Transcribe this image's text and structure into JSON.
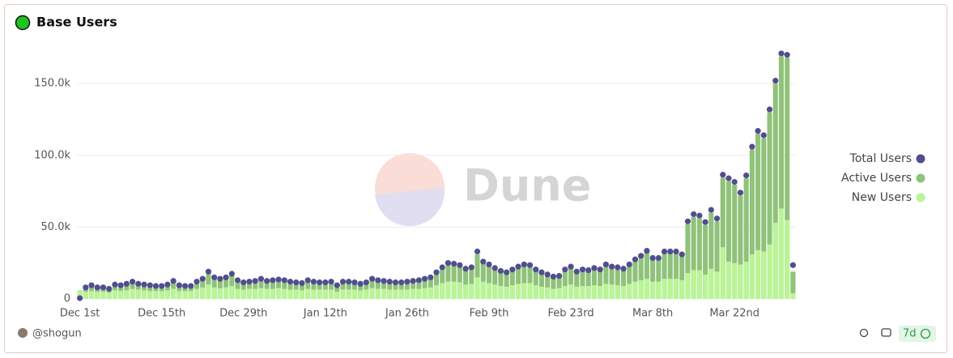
{
  "chart_data": {
    "type": "bar",
    "title": "Base Users",
    "watermark": "Dune",
    "author": "@shogun",
    "refresh": "7d",
    "categories": [
      "Dec 1st",
      null,
      null,
      null,
      null,
      null,
      null,
      null,
      null,
      null,
      null,
      null,
      null,
      null,
      "Dec 15th",
      null,
      null,
      null,
      null,
      null,
      null,
      null,
      null,
      null,
      null,
      null,
      null,
      null,
      "Dec 29th",
      null,
      null,
      null,
      null,
      null,
      null,
      null,
      null,
      null,
      null,
      null,
      null,
      null,
      "Jan 12th",
      null,
      null,
      null,
      null,
      null,
      null,
      null,
      null,
      null,
      null,
      null,
      null,
      null,
      "Jan 26th",
      null,
      null,
      null,
      null,
      null,
      null,
      null,
      null,
      null,
      null,
      null,
      null,
      null,
      "Feb 9th",
      null,
      null,
      null,
      null,
      null,
      null,
      null,
      null,
      null,
      null,
      null,
      null,
      null,
      "Feb 23rd",
      null,
      null,
      null,
      null,
      null,
      null,
      null,
      null,
      null,
      null,
      null,
      null,
      null,
      "Mar 8th",
      null,
      null,
      null,
      null,
      null,
      null,
      null,
      null,
      null,
      null,
      null,
      null,
      null,
      "Mar 22nd",
      null,
      null,
      null,
      null,
      null,
      null,
      null,
      null,
      null,
      null
    ],
    "ylim": [
      0,
      180000
    ],
    "yticks": [
      0,
      {
        "value": 50000,
        "label": "50.0k"
      },
      {
        "value": 100000,
        "label": "100.0k"
      },
      {
        "value": 150000,
        "label": "150.0k"
      }
    ],
    "grid": true,
    "legend": "right",
    "series": [
      {
        "name": "Total Users",
        "color": "#514e8f",
        "style": "dot",
        "values": [
          500,
          8000,
          9500,
          8000,
          8000,
          7000,
          10000,
          9500,
          10500,
          12000,
          10500,
          10000,
          9500,
          9000,
          9000,
          10000,
          12500,
          9500,
          9000,
          9000,
          12000,
          14000,
          19000,
          15000,
          14000,
          15000,
          17500,
          13000,
          11500,
          12000,
          12500,
          14000,
          12500,
          13000,
          13500,
          13000,
          12000,
          11500,
          11000,
          13000,
          12000,
          11500,
          11500,
          12000,
          9500,
          12000,
          12000,
          11500,
          10500,
          11500,
          14000,
          13000,
          12500,
          12000,
          11500,
          11500,
          12000,
          12500,
          13000,
          14000,
          15000,
          18500,
          22000,
          25000,
          24500,
          23500,
          21000,
          22000,
          33000,
          26000,
          24000,
          21500,
          19500,
          18500,
          20500,
          22500,
          24000,
          23500,
          20500,
          18500,
          17000,
          15500,
          16000,
          20500,
          22500,
          19000,
          20500,
          20000,
          21500,
          20500,
          24000,
          22500,
          22000,
          21000,
          24000,
          27500,
          30000,
          33500,
          28500,
          28500,
          33000,
          33000,
          33000,
          31000,
          54000,
          59000,
          58000,
          53500,
          62000,
          56000,
          86500,
          84000,
          81500,
          74000,
          86000,
          106000,
          117000,
          114000,
          132000,
          152000,
          171000,
          170000,
          23500
        ]
      },
      {
        "name": "Active Users",
        "color": "#8fc27a",
        "style": "bar",
        "values": [
          6000,
          7500,
          9000,
          7500,
          7500,
          6500,
          9500,
          9000,
          10000,
          11500,
          10000,
          9500,
          9000,
          8500,
          8500,
          9500,
          12000,
          9000,
          8500,
          8500,
          11500,
          13500,
          18000,
          14500,
          13500,
          14500,
          17000,
          12500,
          11000,
          11500,
          12000,
          13500,
          12000,
          12500,
          13000,
          12500,
          11500,
          11000,
          10500,
          12500,
          11500,
          11000,
          11000,
          11500,
          9000,
          11500,
          11500,
          11000,
          10000,
          11000,
          13500,
          12500,
          12000,
          11500,
          11000,
          11000,
          11500,
          12000,
          12500,
          13500,
          14500,
          18000,
          21000,
          24000,
          23500,
          22500,
          20000,
          21000,
          31000,
          25000,
          23000,
          20500,
          18500,
          17500,
          19500,
          21500,
          23000,
          22500,
          19500,
          17500,
          16000,
          14500,
          15000,
          19500,
          21500,
          18000,
          19500,
          19000,
          20500,
          19500,
          23000,
          21500,
          21000,
          20000,
          23000,
          26500,
          29000,
          32500,
          27500,
          27500,
          32000,
          32000,
          32000,
          30000,
          52000,
          57000,
          56000,
          51500,
          60000,
          54000,
          84500,
          82000,
          79500,
          72000,
          84000,
          104000,
          115000,
          112000,
          130000,
          150000,
          169000,
          168000,
          19000
        ]
      },
      {
        "name": "New Users",
        "color": "#b9f595",
        "style": "bar",
        "values": [
          6000,
          5000,
          5500,
          5000,
          5000,
          4500,
          6000,
          5500,
          6000,
          7000,
          6500,
          6000,
          5500,
          5500,
          5500,
          6000,
          7000,
          5500,
          5500,
          5500,
          7000,
          8000,
          10000,
          8000,
          7500,
          8000,
          9000,
          7000,
          6500,
          7000,
          7000,
          7500,
          7000,
          7000,
          7500,
          7000,
          6500,
          6500,
          6000,
          7000,
          6500,
          6500,
          6500,
          6500,
          5000,
          6500,
          6500,
          6500,
          6000,
          6500,
          7500,
          7000,
          7000,
          6500,
          6500,
          6500,
          6500,
          7000,
          7000,
          7500,
          8000,
          9500,
          11000,
          12000,
          12000,
          11500,
          10000,
          10500,
          15000,
          12000,
          11000,
          10000,
          9000,
          8500,
          9500,
          10500,
          11000,
          11000,
          9500,
          8500,
          8000,
          7000,
          7500,
          9000,
          10000,
          8500,
          9000,
          9000,
          9500,
          9000,
          10500,
          10000,
          9500,
          9000,
          10500,
          12000,
          13000,
          14000,
          12000,
          12000,
          14000,
          14000,
          14000,
          13000,
          18000,
          20000,
          20000,
          17000,
          21000,
          19000,
          36000,
          26000,
          25000,
          24000,
          26000,
          31000,
          34000,
          33000,
          38000,
          53000,
          63000,
          55000,
          4000
        ]
      }
    ]
  }
}
